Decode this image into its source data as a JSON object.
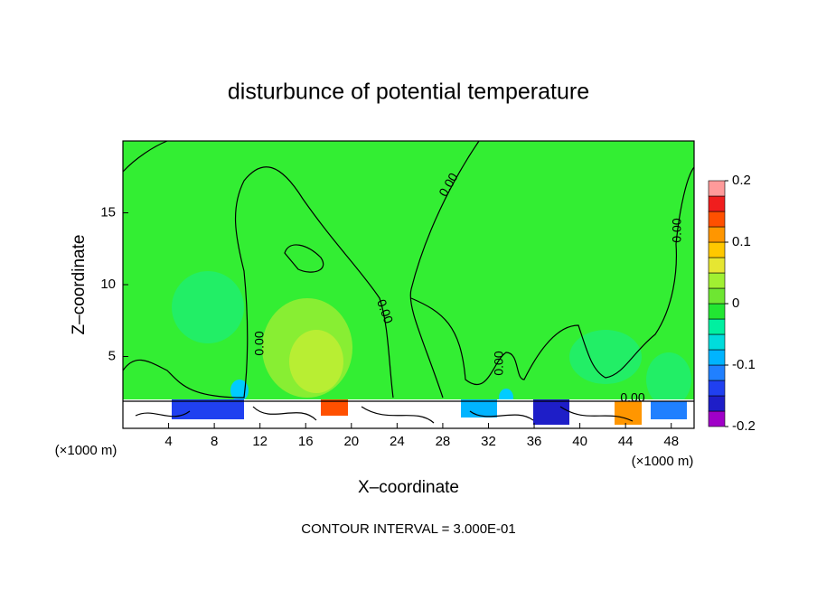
{
  "chart_data": {
    "type": "contour",
    "title": "disturbunce of potential temperature",
    "x_label": "X–coordinate",
    "y_label": "Z–coordinate",
    "x_unit_left": "(×1000 m)",
    "x_unit_right": "(×1000 m)",
    "footer": "CONTOUR INTERVAL = 3.000E-01",
    "xlim": [
      0,
      50
    ],
    "xticks": [
      4,
      8,
      12,
      16,
      20,
      24,
      28,
      32,
      36,
      40,
      44,
      48
    ],
    "ylim": [
      0,
      20
    ],
    "yticks": [
      5,
      10,
      15
    ],
    "contour_labels": [
      "0.00",
      "0.00",
      "0.00",
      "0.00",
      "0.00",
      "0.00"
    ],
    "colorbar": {
      "lim": [
        -0.2,
        0.2
      ],
      "ticks": [
        -0.2,
        -0.1,
        0,
        0.1,
        0.2
      ],
      "colors": [
        "#a000c8",
        "#1e1ec8",
        "#2040f0",
        "#2080ff",
        "#00b4ff",
        "#00dcdc",
        "#00f0a0",
        "#22e632",
        "#6ee632",
        "#a0f032",
        "#e6e632",
        "#ffc800",
        "#ff9600",
        "#ff5000",
        "#f01e1e",
        "#ff9a9a"
      ]
    }
  }
}
